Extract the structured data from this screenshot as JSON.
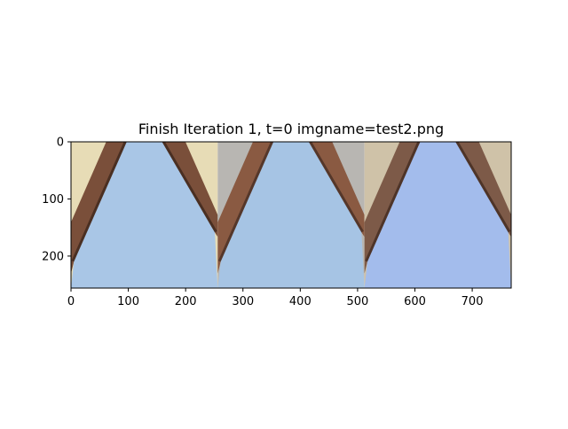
{
  "figure": {
    "title": "Finish Iteration 1, t=0 imgname=test2.png"
  },
  "chart_data": {
    "type": "image",
    "title": "Finish Iteration 1, t=0 imgname=test2.png",
    "xlabel": "",
    "ylabel": "",
    "xlim": [
      0,
      768
    ],
    "ylim": [
      256,
      0
    ],
    "xticks": [
      0,
      100,
      200,
      300,
      400,
      500,
      600,
      700
    ],
    "yticks": [
      0,
      100,
      200
    ],
    "grid": false,
    "panels": [
      {
        "x": [
          0,
          256
        ],
        "sky": "#a9c6e6",
        "ground": "#e7dcb6",
        "wall": "#7a4f3a",
        "wall_dark": "#4a2f22"
      },
      {
        "x": [
          256,
          512
        ],
        "sky": "#a6c4e4",
        "ground": "#b8b6b2",
        "wall": "#8a5a42",
        "wall_dark": "#55372a"
      },
      {
        "x": [
          512,
          768
        ],
        "sky": "#a3bcec",
        "ground": "#cfc2a8",
        "wall": "#7d5a48",
        "wall_dark": "#4e3428"
      }
    ]
  }
}
